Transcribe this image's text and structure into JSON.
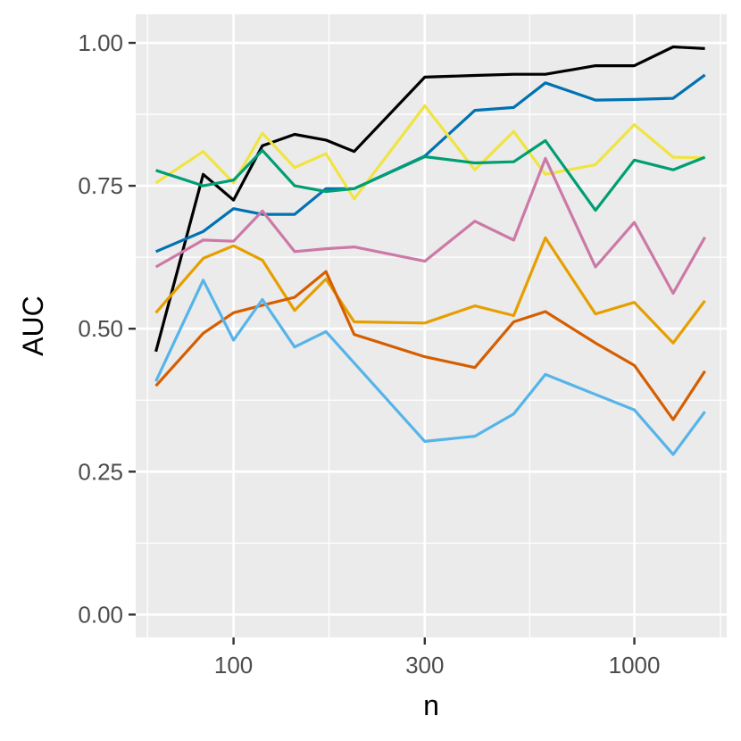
{
  "chart_data": {
    "type": "line",
    "title": "",
    "xlabel": "n",
    "ylabel": "AUC",
    "x_scale": "log",
    "xlim": [
      57,
      1700
    ],
    "ylim": [
      -0.04,
      1.05
    ],
    "x_ticks": [
      100,
      300,
      1000
    ],
    "x_tick_labels": [
      "100",
      "300",
      "1000"
    ],
    "y_ticks": [
      0,
      0.25,
      0.5,
      0.75,
      1
    ],
    "y_tick_labels": [
      "0.00",
      "0.25",
      "0.50",
      "0.75",
      "1.00"
    ],
    "x_minor": [
      61,
      173,
      548,
      1640
    ],
    "y_minor": [
      0.125,
      0.375,
      0.625,
      0.875
    ],
    "grid": true,
    "legend": "none",
    "background": "#ebebeb",
    "x": [
      64,
      84,
      100,
      118,
      142,
      170,
      200,
      300,
      400,
      500,
      600,
      800,
      1000,
      1250,
      1500
    ],
    "series": [
      {
        "color": "#000000",
        "values": [
          0.46,
          0.77,
          0.725,
          0.82,
          0.84,
          0.83,
          0.81,
          0.94,
          0.943,
          0.945,
          0.945,
          0.96,
          0.96,
          0.993,
          0.99
        ]
      },
      {
        "color": "#0072B2",
        "values": [
          0.635,
          0.67,
          0.71,
          0.7,
          0.7,
          0.745,
          0.745,
          0.802,
          0.882,
          0.887,
          0.93,
          0.9,
          0.901,
          0.903,
          0.944
        ]
      },
      {
        "color": "#F0E442",
        "values": [
          0.755,
          0.81,
          0.755,
          0.842,
          0.782,
          0.806,
          0.727,
          0.89,
          0.778,
          0.845,
          0.77,
          0.787,
          0.857,
          0.8,
          0.799
        ]
      },
      {
        "color": "#009E73",
        "values": [
          0.777,
          0.75,
          0.76,
          0.812,
          0.75,
          0.74,
          0.745,
          0.801,
          0.79,
          0.792,
          0.829,
          0.707,
          0.795,
          0.778,
          0.8
        ]
      },
      {
        "color": "#CC79A7",
        "values": [
          0.608,
          0.655,
          0.653,
          0.706,
          0.635,
          0.64,
          0.643,
          0.618,
          0.688,
          0.655,
          0.798,
          0.608,
          0.686,
          0.562,
          0.66
        ]
      },
      {
        "color": "#E69F00",
        "values": [
          0.528,
          0.623,
          0.645,
          0.62,
          0.532,
          0.587,
          0.512,
          0.51,
          0.54,
          0.523,
          0.659,
          0.526,
          0.546,
          0.475,
          0.549
        ]
      },
      {
        "color": "#D55E00",
        "values": [
          0.4,
          0.492,
          0.528,
          0.541,
          0.555,
          0.6,
          0.49,
          0.451,
          0.432,
          0.512,
          0.53,
          0.475,
          0.436,
          0.341,
          0.426
        ]
      },
      {
        "color": "#56B4E9",
        "values": [
          0.408,
          0.585,
          0.48,
          0.551,
          0.468,
          0.495,
          0.44,
          0.303,
          0.312,
          0.351,
          0.42,
          0.385,
          0.358,
          0.28,
          0.355
        ]
      }
    ]
  }
}
